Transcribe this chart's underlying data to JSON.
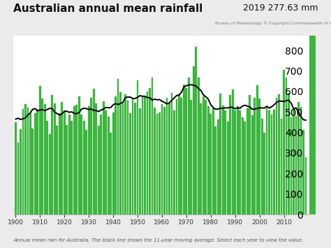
{
  "title": "Australian annual mean rainfall",
  "subtitle": "2019 277.63 mm",
  "copyright": "Bureau of Meteorology © Copyright Commonwealth of Australia 2019",
  "footnote": "Annual mean rain for Australia. The black line shows the 11-year moving average. Select each year to view the value.",
  "bar_color": "#3db540",
  "line_color": "#000000",
  "background_color": "#ebebeb",
  "plot_bg_color": "#ffffff",
  "years": [
    1900,
    1901,
    1902,
    1903,
    1904,
    1905,
    1906,
    1907,
    1908,
    1909,
    1910,
    1911,
    1912,
    1913,
    1914,
    1915,
    1916,
    1917,
    1918,
    1919,
    1920,
    1921,
    1922,
    1923,
    1924,
    1925,
    1926,
    1927,
    1928,
    1929,
    1930,
    1931,
    1932,
    1933,
    1934,
    1935,
    1936,
    1937,
    1938,
    1939,
    1940,
    1941,
    1942,
    1943,
    1944,
    1945,
    1946,
    1947,
    1948,
    1949,
    1950,
    1951,
    1952,
    1953,
    1954,
    1955,
    1956,
    1957,
    1958,
    1959,
    1960,
    1961,
    1962,
    1963,
    1964,
    1965,
    1966,
    1967,
    1968,
    1969,
    1970,
    1971,
    1972,
    1973,
    1974,
    1975,
    1976,
    1977,
    1978,
    1979,
    1980,
    1981,
    1982,
    1983,
    1984,
    1985,
    1986,
    1987,
    1988,
    1989,
    1990,
    1991,
    1992,
    1993,
    1994,
    1995,
    1996,
    1997,
    1998,
    1999,
    2000,
    2001,
    2002,
    2003,
    2004,
    2005,
    2006,
    2007,
    2008,
    2009,
    2010,
    2011,
    2012,
    2013,
    2014,
    2015,
    2016,
    2017,
    2018,
    2019
  ],
  "values": [
    449,
    352,
    417,
    514,
    537,
    520,
    497,
    418,
    494,
    513,
    627,
    566,
    537,
    456,
    391,
    583,
    543,
    431,
    495,
    549,
    501,
    436,
    488,
    455,
    528,
    533,
    575,
    487,
    456,
    413,
    529,
    567,
    613,
    541,
    434,
    486,
    551,
    507,
    477,
    400,
    498,
    575,
    660,
    597,
    545,
    586,
    554,
    493,
    567,
    545,
    655,
    517,
    576,
    579,
    599,
    618,
    669,
    520,
    490,
    498,
    539,
    526,
    570,
    540,
    593,
    507,
    562,
    586,
    569,
    634,
    616,
    669,
    559,
    721,
    818,
    666,
    541,
    576,
    559,
    527,
    492,
    519,
    428,
    464,
    589,
    531,
    507,
    453,
    582,
    611,
    509,
    527,
    509,
    473,
    453,
    516,
    581,
    482,
    568,
    629,
    565,
    466,
    397,
    521,
    508,
    488,
    512,
    567,
    584,
    467,
    706,
    666,
    593,
    472,
    515,
    481,
    549,
    524,
    413,
    278
  ],
  "xlim": [
    1899.0,
    2020.5
  ],
  "ylim": [
    0,
    870
  ],
  "xtick_years": [
    1900,
    1910,
    1920,
    1930,
    1940,
    1950,
    1960,
    1970,
    1980,
    1990,
    2000,
    2010
  ],
  "right_strip_color": "#3db540",
  "right_strip_ticks": [
    0,
    100,
    200,
    300,
    400,
    500,
    600,
    700,
    800
  ]
}
